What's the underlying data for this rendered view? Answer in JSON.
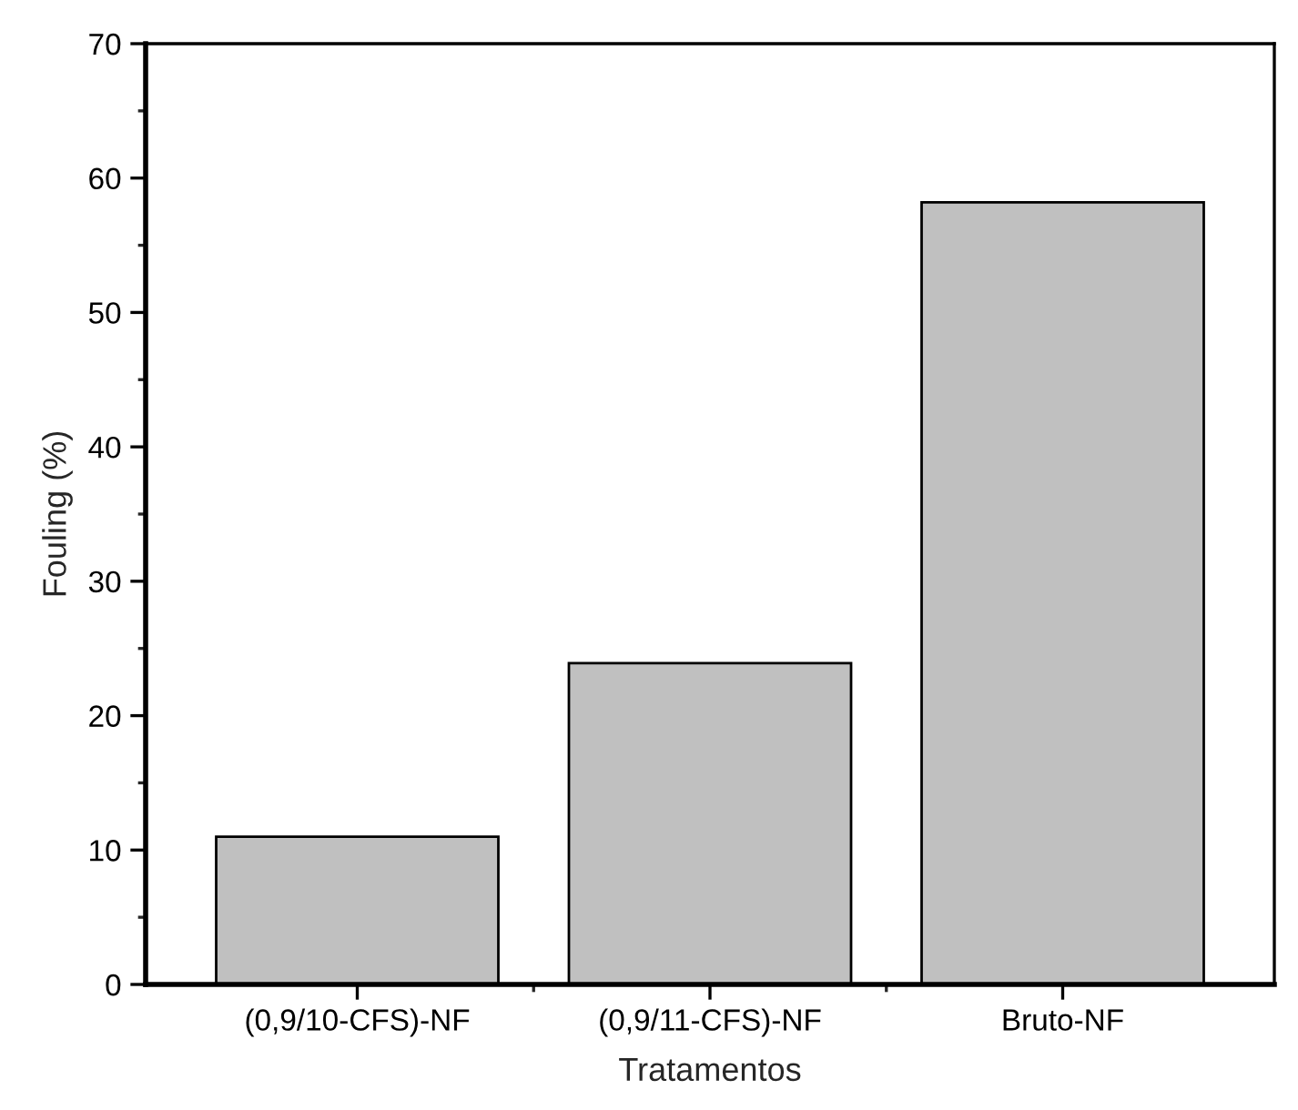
{
  "chart_data": {
    "type": "bar",
    "xlabel": "Tratamentos",
    "ylabel": "Fouling (%)",
    "categories": [
      "(0,9/10-CFS)-NF",
      "(0,9/11-CFS)-NF",
      "Bruto-NF"
    ],
    "values": [
      11.0,
      23.9,
      58.2
    ],
    "color": "#c0c0c0",
    "ylim": [
      0,
      70
    ],
    "yticks": [
      0,
      10,
      20,
      30,
      40,
      50,
      60,
      70
    ],
    "grid": false,
    "legend": false
  }
}
